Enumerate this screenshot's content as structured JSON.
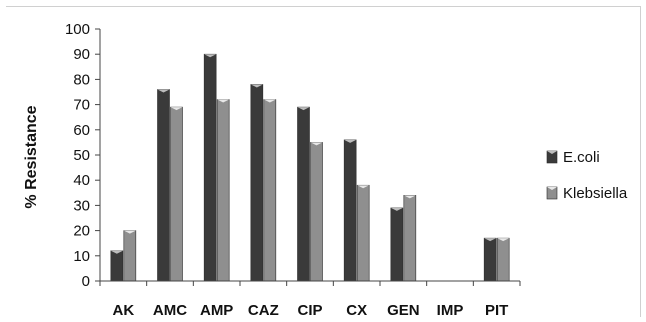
{
  "chart_data": {
    "type": "bar",
    "title": "",
    "xlabel": "",
    "ylabel": "% Resistance",
    "categories": [
      "AK",
      "AMC",
      "AMP",
      "CAZ",
      "CIP",
      "CX",
      "GEN",
      "IMP",
      "PIT"
    ],
    "series": [
      {
        "name": "E.coli",
        "values": [
          12,
          76,
          90,
          78,
          69,
          56,
          29,
          0,
          17
        ],
        "color": "#3a3a3a",
        "cap_color": "#bdbdbd"
      },
      {
        "name": "Klebsiella",
        "values": [
          20,
          69,
          72,
          72,
          55,
          38,
          34,
          0,
          17
        ],
        "color": "#8f8f8f",
        "cap_color": "#e8e8e8"
      }
    ],
    "ylim": [
      0,
      100
    ],
    "yticks": [
      "0",
      "10",
      "20",
      "30",
      "40",
      "50",
      "60",
      "70",
      "80",
      "90",
      "100"
    ],
    "grid": false,
    "legend_position": "right"
  }
}
